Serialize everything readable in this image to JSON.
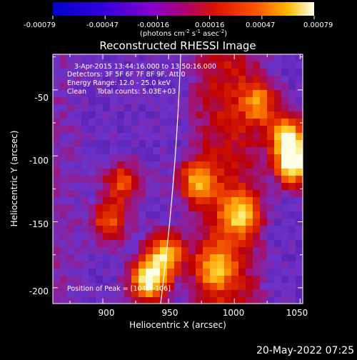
{
  "colorbar": {
    "tick_labels": [
      "-0.00079",
      "-0.00047",
      "-0.00016",
      "0.00016",
      "0.00047",
      "0.00079"
    ],
    "units_text": "(photons cm",
    "units_exp1": "-2",
    "units_mid": " s",
    "units_exp2": "-1",
    "units_tail": " asec",
    "units_exp3": "-2",
    "units_close": ")"
  },
  "chart_data": {
    "type": "heatmap",
    "title": "Reconstructed RHESSI Image",
    "xlabel": "Heliocentric X (arcsec)",
    "ylabel": "Heliocentric Y (arcsec)",
    "xlim": [
      862,
      1052
    ],
    "ylim": [
      -212,
      -23
    ],
    "x_ticks": [
      900,
      950,
      1000,
      1050
    ],
    "y_ticks": [
      -50,
      -100,
      -150,
      -200
    ],
    "colorbar_range": [
      -0.00079,
      0.00079
    ],
    "grid": false,
    "annotations": [
      "3-Apr-2015 13:44:16.000 to 13:50:16.000",
      "Detectors: 3F 5F 6F 7F 8F 9F, Att 0",
      "Energy Range: 12.0 - 25.0 keV",
      "Clean     Total counts: 5.03E+03"
    ],
    "peak_label": "Position of Peak = [1045,-106]",
    "peak": [
      1045,
      -106
    ],
    "hot_regions": [
      {
        "x": 1045,
        "y": -106,
        "level": 1.0
      },
      {
        "x": 1040,
        "y": -85,
        "level": 0.8
      },
      {
        "x": 935,
        "y": -195,
        "level": 0.95
      },
      {
        "x": 948,
        "y": -175,
        "level": 0.8
      },
      {
        "x": 905,
        "y": -150,
        "level": 0.55
      },
      {
        "x": 915,
        "y": -120,
        "level": 0.5
      },
      {
        "x": 970,
        "y": -120,
        "level": 0.6
      },
      {
        "x": 1005,
        "y": -145,
        "level": 0.6
      },
      {
        "x": 1020,
        "y": -60,
        "level": 0.55
      },
      {
        "x": 985,
        "y": -185,
        "level": 0.55
      }
    ]
  },
  "footer": {
    "datestamp": "20-May-2022 07:25"
  }
}
